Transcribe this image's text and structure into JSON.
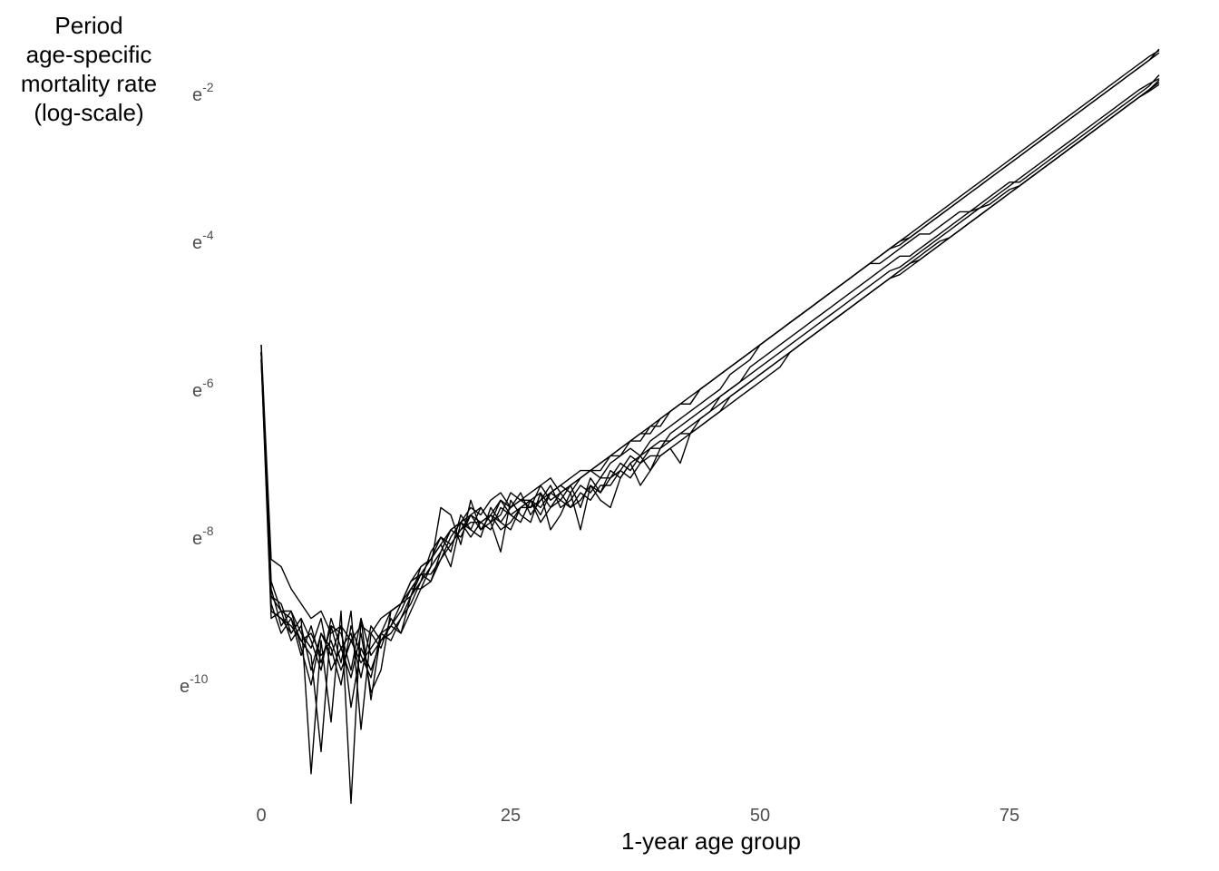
{
  "chart_data": {
    "type": "line",
    "xlabel": "1-year age group",
    "ylabel_lines": [
      "Period",
      "age-specific",
      "mortality rate",
      "(log-scale)"
    ],
    "x_ticks": [
      0,
      25,
      50,
      75
    ],
    "y_ticks": [
      {
        "value": -2,
        "base": "e",
        "exp": "-2"
      },
      {
        "value": -4,
        "base": "e",
        "exp": "-4"
      },
      {
        "value": -6,
        "base": "e",
        "exp": "-6"
      },
      {
        "value": -8,
        "base": "e",
        "exp": "-8"
      },
      {
        "value": -10,
        "base": "e",
        "exp": "-10"
      }
    ],
    "xlim": [
      0,
      90
    ],
    "ylim": [
      -11.6,
      -1.2
    ],
    "y_scale": "log (natural)",
    "grid": false,
    "line_color": "#000000",
    "series": [
      {
        "values": [
          -5.4,
          -8.3,
          -8.4,
          -8.7,
          -8.9,
          -9.1,
          -9.0,
          -9.3,
          -9.2,
          -9.4,
          -9.2,
          -9.3,
          -9.1,
          -9.0,
          -8.9,
          -8.6,
          -8.5,
          -8.3,
          -8.1,
          -7.9,
          -7.8,
          -7.6,
          -7.7,
          -7.5,
          -7.4,
          -7.6,
          -7.5,
          -7.4,
          -7.3,
          -7.5,
          -7.4,
          -7.3,
          -7.2,
          -7.1,
          -7.2,
          -7.0,
          -6.9,
          -6.8,
          -6.9,
          -6.7,
          -6.6,
          -6.5,
          -6.4,
          -6.3,
          -6.2,
          -6.1,
          -6.0,
          -5.8,
          -5.7,
          -5.6,
          -5.4,
          -5.3,
          -5.2,
          -5.1,
          -5.0,
          -4.9,
          -4.8,
          -4.7,
          -4.6,
          -4.5,
          -4.4,
          -4.3,
          -4.3,
          -4.2,
          -4.1,
          -4.0,
          -3.9,
          -3.9,
          -3.8,
          -3.7,
          -3.6,
          -3.6,
          -3.5,
          -3.4,
          -3.3,
          -3.2,
          -3.2,
          -3.1,
          -3.0,
          -2.9,
          -2.8,
          -2.7,
          -2.6,
          -2.5,
          -2.4,
          -2.3,
          -2.2,
          -2.1,
          -2.0,
          -1.9,
          -1.75
        ]
      },
      {
        "values": [
          -5.5,
          -8.6,
          -9.0,
          -9.0,
          -9.5,
          -10.0,
          -9.3,
          -9.6,
          -9.2,
          -10.3,
          -9.5,
          -9.8,
          -9.4,
          -9.2,
          -9.3,
          -9.0,
          -8.7,
          -8.6,
          -8.3,
          -8.0,
          -7.8,
          -7.9,
          -7.6,
          -7.8,
          -7.5,
          -7.7,
          -7.6,
          -7.5,
          -7.7,
          -7.4,
          -7.5,
          -7.3,
          -7.6,
          -7.2,
          -7.4,
          -7.2,
          -7.0,
          -7.1,
          -6.9,
          -6.8,
          -6.8,
          -6.6,
          -6.5,
          -6.4,
          -6.3,
          -6.2,
          -6.1,
          -6.0,
          -5.9,
          -5.7,
          -5.6,
          -5.5,
          -5.4,
          -5.3,
          -5.2,
          -5.1,
          -5.0,
          -4.9,
          -4.8,
          -4.7,
          -4.6,
          -4.5,
          -4.4,
          -4.3,
          -4.2,
          -4.2,
          -4.1,
          -4.0,
          -3.9,
          -3.8,
          -3.7,
          -3.6,
          -3.55,
          -3.5,
          -3.4,
          -3.3,
          -3.25,
          -3.15,
          -3.05,
          -2.95,
          -2.85,
          -2.75,
          -2.65,
          -2.55,
          -2.45,
          -2.35,
          -2.25,
          -2.15,
          -2.05,
          -1.95,
          -1.85
        ]
      },
      {
        "values": [
          -5.6,
          -8.8,
          -8.9,
          -9.3,
          -9.1,
          -11.2,
          -9.4,
          -10.5,
          -9.0,
          -11.6,
          -9.1,
          -10.2,
          -9.3,
          -9.4,
          -9.1,
          -8.9,
          -8.6,
          -8.4,
          -7.6,
          -7.7,
          -8.1,
          -7.5,
          -7.9,
          -7.8,
          -8.2,
          -7.5,
          -7.7,
          -7.8,
          -7.4,
          -7.9,
          -7.7,
          -7.4,
          -7.9,
          -7.3,
          -7.5,
          -7.6,
          -7.2,
          -7.0,
          -7.3,
          -7.1,
          -6.9,
          -6.8,
          -7.0,
          -6.6,
          -6.5,
          -6.4,
          -6.3,
          -6.2,
          -6.1,
          -6.0,
          -5.9,
          -5.8,
          -5.7,
          -5.5,
          -5.4,
          -5.3,
          -5.2,
          -5.1,
          -5.0,
          -4.9,
          -4.8,
          -4.7,
          -4.6,
          -4.5,
          -4.4,
          -4.3,
          -4.25,
          -4.15,
          -4.05,
          -3.95,
          -3.85,
          -3.75,
          -3.65,
          -3.55,
          -3.45,
          -3.35,
          -3.25,
          -3.15,
          -3.05,
          -2.95,
          -2.85,
          -2.75,
          -2.65,
          -2.55,
          -2.45,
          -2.35,
          -2.25,
          -2.15,
          -2.05,
          -1.95,
          -1.85
        ]
      },
      {
        "values": [
          -5.5,
          -9.0,
          -9.1,
          -9.2,
          -9.4,
          -9.6,
          -10.9,
          -9.2,
          -9.7,
          -9.0,
          -10.6,
          -9.3,
          -9.5,
          -9.1,
          -9.3,
          -8.8,
          -8.6,
          -8.2,
          -8.0,
          -8.2,
          -7.7,
          -7.9,
          -8.0,
          -7.6,
          -7.8,
          -7.9,
          -7.6,
          -7.5,
          -7.8,
          -7.6,
          -7.4,
          -7.6,
          -7.5,
          -7.3,
          -7.4,
          -7.1,
          -7.2,
          -7.0,
          -6.9,
          -7.1,
          -6.8,
          -6.7,
          -6.6,
          -6.6,
          -6.5,
          -6.4,
          -6.3,
          -6.1,
          -6.0,
          -5.9,
          -5.8,
          -5.7,
          -5.6,
          -5.5,
          -5.4,
          -5.3,
          -5.2,
          -5.1,
          -5.0,
          -4.9,
          -4.8,
          -4.7,
          -4.6,
          -4.5,
          -4.4,
          -4.3,
          -4.2,
          -4.1,
          -4.0,
          -3.95,
          -3.85,
          -3.75,
          -3.65,
          -3.55,
          -3.45,
          -3.35,
          -3.25,
          -3.15,
          -3.05,
          -2.95,
          -2.85,
          -2.75,
          -2.65,
          -2.55,
          -2.45,
          -2.35,
          -2.25,
          -2.15,
          -2.05,
          -1.95,
          -1.82
        ]
      },
      {
        "values": [
          -5.6,
          -9.1,
          -9.0,
          -9.4,
          -9.2,
          -9.8,
          -9.3,
          -9.5,
          -10.0,
          -9.2,
          -9.6,
          -9.9,
          -9.3,
          -9.2,
          -9.0,
          -8.7,
          -8.5,
          -8.6,
          -8.2,
          -7.9,
          -8.0,
          -7.7,
          -7.8,
          -7.9,
          -7.6,
          -7.7,
          -7.8,
          -7.5,
          -7.4,
          -7.6,
          -7.5,
          -7.6,
          -7.4,
          -7.5,
          -7.3,
          -7.3,
          -7.1,
          -7.2,
          -7.0,
          -6.9,
          -6.9,
          -6.8,
          -6.7,
          -6.6,
          -6.4,
          -6.3,
          -6.2,
          -6.1,
          -6.0,
          -5.9,
          -5.8,
          -5.7,
          -5.6,
          -5.5,
          -5.4,
          -5.3,
          -5.2,
          -5.1,
          -5.0,
          -4.9,
          -4.8,
          -4.7,
          -4.6,
          -4.5,
          -4.45,
          -4.35,
          -4.25,
          -4.15,
          -4.05,
          -3.95,
          -3.85,
          -3.75,
          -3.65,
          -3.55,
          -3.45,
          -3.35,
          -3.25,
          -3.15,
          -3.05,
          -2.95,
          -2.85,
          -2.75,
          -2.65,
          -2.55,
          -2.45,
          -2.35,
          -2.25,
          -2.15,
          -2.05,
          -1.97,
          -1.88
        ]
      },
      {
        "values": [
          -5.4,
          -8.7,
          -9.2,
          -9.0,
          -9.3,
          -9.5,
          -9.1,
          -9.8,
          -9.5,
          -9.9,
          -9.3,
          -10.1,
          -9.8,
          -9.0,
          -8.9,
          -8.8,
          -8.4,
          -8.3,
          -8.1,
          -8.4,
          -7.8,
          -8.0,
          -7.8,
          -7.7,
          -7.9,
          -7.8,
          -7.6,
          -7.6,
          -7.5,
          -7.3,
          -7.6,
          -7.5,
          -7.3,
          -7.4,
          -7.2,
          -7.2,
          -7.1,
          -6.9,
          -7.0,
          -6.8,
          -6.7,
          -6.7,
          -6.6,
          -6.5,
          -6.4,
          -6.3,
          -6.1,
          -6.0,
          -5.9,
          -5.8,
          -5.7,
          -5.6,
          -5.5,
          -5.4,
          -5.3,
          -5.2,
          -5.1,
          -5.0,
          -4.9,
          -4.8,
          -4.7,
          -4.6,
          -4.5,
          -4.4,
          -4.35,
          -4.25,
          -4.15,
          -4.05,
          -3.95,
          -3.85,
          -3.75,
          -3.65,
          -3.55,
          -3.45,
          -3.35,
          -3.25,
          -3.15,
          -3.05,
          -2.95,
          -2.85,
          -2.75,
          -2.65,
          -2.55,
          -2.45,
          -2.35,
          -2.25,
          -2.15,
          -2.05,
          -1.95,
          -1.87,
          -1.8
        ]
      },
      {
        "values": [
          -5.5,
          -8.9,
          -9.3,
          -9.1,
          -9.6,
          -9.2,
          -9.7,
          -9.2,
          -9.3,
          -9.8,
          -9.1,
          -9.6,
          -9.4,
          -9.2,
          -8.9,
          -8.7,
          -8.7,
          -8.4,
          -8.2,
          -7.9,
          -7.8,
          -7.7,
          -7.6,
          -7.8,
          -7.7,
          -7.4,
          -7.5,
          -7.6,
          -7.3,
          -7.2,
          -7.4,
          -7.3,
          -7.2,
          -7.1,
          -7.0,
          -6.9,
          -6.8,
          -6.7,
          -6.7,
          -6.5,
          -6.5,
          -6.3,
          -6.2,
          -6.2,
          -6.0,
          -5.9,
          -5.8,
          -5.7,
          -5.6,
          -5.5,
          -5.4,
          -5.3,
          -5.2,
          -5.1,
          -5.0,
          -4.9,
          -4.8,
          -4.7,
          -4.6,
          -4.5,
          -4.4,
          -4.3,
          -4.2,
          -4.1,
          -4.0,
          -3.95,
          -3.85,
          -3.75,
          -3.65,
          -3.55,
          -3.45,
          -3.35,
          -3.25,
          -3.15,
          -3.05,
          -2.95,
          -2.85,
          -2.75,
          -2.65,
          -2.55,
          -2.45,
          -2.35,
          -2.25,
          -2.15,
          -2.05,
          -1.95,
          -1.85,
          -1.75,
          -1.65,
          -1.55,
          -1.45
        ]
      },
      {
        "values": [
          -5.5,
          -9.0,
          -9.1,
          -9.3,
          -9.1,
          -9.4,
          -9.8,
          -9.1,
          -9.5,
          -9.3,
          -9.9,
          -9.2,
          -9.4,
          -9.3,
          -9.1,
          -8.8,
          -8.5,
          -8.5,
          -8.3,
          -8.1,
          -7.9,
          -7.7,
          -7.9,
          -7.7,
          -7.5,
          -7.6,
          -7.4,
          -7.7,
          -7.5,
          -7.4,
          -7.3,
          -7.4,
          -7.2,
          -7.1,
          -7.1,
          -6.9,
          -6.9,
          -6.7,
          -6.6,
          -6.6,
          -6.4,
          -6.3,
          -6.2,
          -6.2,
          -6.0,
          -5.9,
          -5.8,
          -5.7,
          -5.6,
          -5.5,
          -5.4,
          -5.3,
          -5.2,
          -5.1,
          -5.0,
          -4.9,
          -4.8,
          -4.7,
          -4.6,
          -4.5,
          -4.4,
          -4.3,
          -4.2,
          -4.1,
          -4.05,
          -3.95,
          -3.85,
          -3.75,
          -3.65,
          -3.55,
          -3.45,
          -3.35,
          -3.25,
          -3.15,
          -3.05,
          -2.95,
          -2.85,
          -2.75,
          -2.65,
          -2.55,
          -2.45,
          -2.35,
          -2.25,
          -2.15,
          -2.05,
          -1.95,
          -1.85,
          -1.75,
          -1.65,
          -1.55,
          -1.4
        ]
      },
      {
        "values": [
          -5.5,
          -8.8,
          -9.0,
          -9.1,
          -9.4,
          -9.3,
          -9.6,
          -9.4,
          -9.8,
          -9.4,
          -9.7,
          -9.5,
          -9.3,
          -9.0,
          -8.9,
          -8.6,
          -8.4,
          -8.3,
          -8.0,
          -8.1,
          -7.9,
          -7.8,
          -7.8,
          -7.7,
          -7.8,
          -7.6,
          -7.5,
          -7.5,
          -7.6,
          -7.4,
          -7.3,
          -7.2,
          -7.1,
          -7.1,
          -7.0,
          -6.9,
          -6.8,
          -6.7,
          -6.6,
          -6.5,
          -6.4,
          -6.3,
          -6.2,
          -6.1,
          -6.0,
          -5.9,
          -5.8,
          -5.7,
          -5.6,
          -5.5,
          -5.4,
          -5.3,
          -5.2,
          -5.1,
          -5.0,
          -4.9,
          -4.8,
          -4.7,
          -4.6,
          -4.5,
          -4.4,
          -4.3,
          -4.2,
          -4.1,
          -4.0,
          -3.9,
          -3.8,
          -3.7,
          -3.6,
          -3.5,
          -3.4,
          -3.3,
          -3.2,
          -3.1,
          -3.0,
          -2.9,
          -2.8,
          -2.7,
          -2.6,
          -2.5,
          -2.4,
          -2.3,
          -2.2,
          -2.1,
          -2.0,
          -1.9,
          -1.8,
          -1.7,
          -1.6,
          -1.5,
          -1.42
        ]
      }
    ]
  }
}
